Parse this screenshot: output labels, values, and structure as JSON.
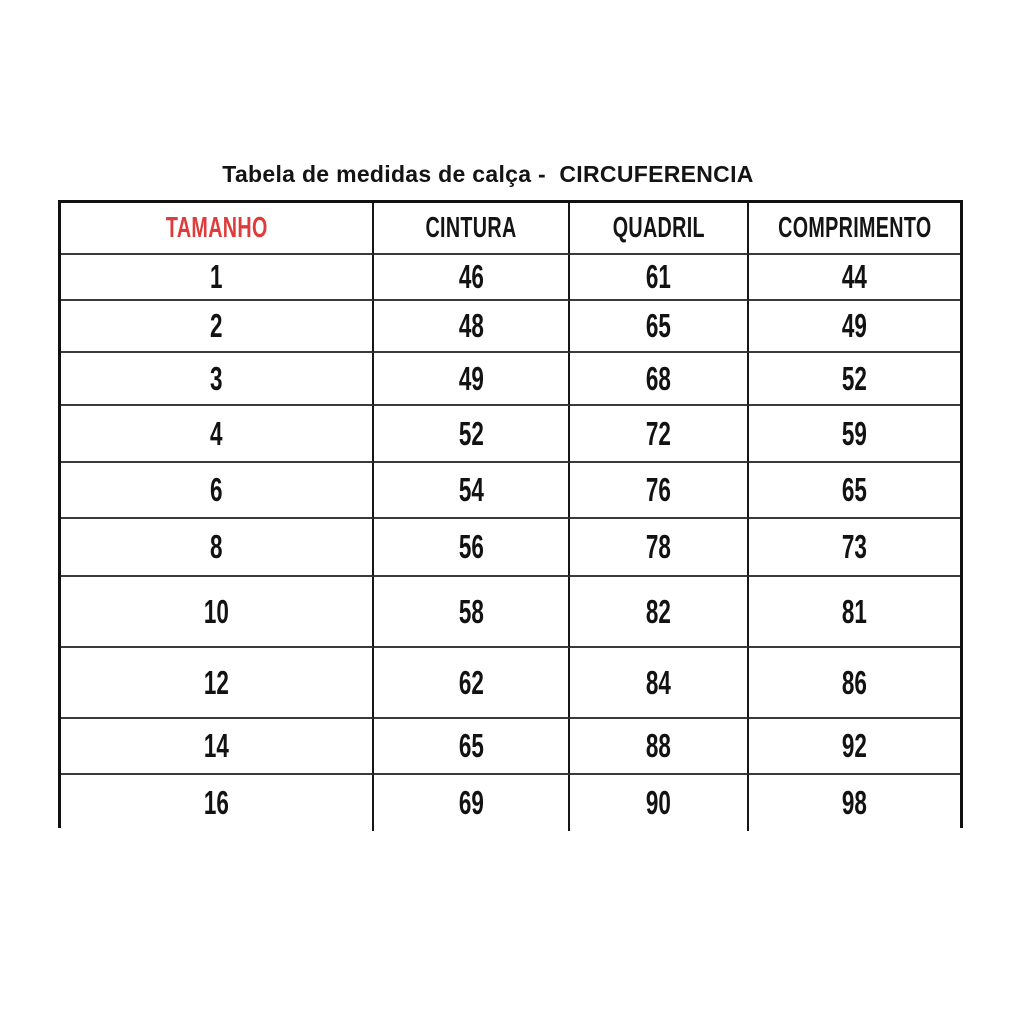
{
  "title": "Tabela de medidas de calça -  CIRCUFERENCIA",
  "colors": {
    "accent_red": "#e03a3a",
    "text_black": "#1b1b1b",
    "background": "#ffffff",
    "border": "#111111"
  },
  "table": {
    "headers": [
      "TAMANHO",
      "CINTURA",
      "QUADRIL",
      "COMPRIMENTO"
    ],
    "rows": [
      [
        "1",
        "46",
        "61",
        "44"
      ],
      [
        "2",
        "48",
        "65",
        "49"
      ],
      [
        "3",
        "49",
        "68",
        "52"
      ],
      [
        "4",
        "52",
        "72",
        "59"
      ],
      [
        "6",
        "54",
        "76",
        "65"
      ],
      [
        "8",
        "56",
        "78",
        "73"
      ],
      [
        "10",
        "58",
        "82",
        "81"
      ],
      [
        "12",
        "62",
        "84",
        "86"
      ],
      [
        "14",
        "65",
        "88",
        "92"
      ],
      [
        "16",
        "69",
        "90",
        "98"
      ]
    ]
  },
  "chart_data": {
    "type": "table",
    "title": "Tabela de medidas de calça -  CIRCUFERENCIA",
    "columns": [
      "TAMANHO",
      "CINTURA",
      "QUADRIL",
      "COMPRIMENTO"
    ],
    "rows": [
      [
        1,
        46,
        61,
        44
      ],
      [
        2,
        48,
        65,
        49
      ],
      [
        3,
        49,
        68,
        52
      ],
      [
        4,
        52,
        72,
        59
      ],
      [
        6,
        54,
        76,
        65
      ],
      [
        8,
        56,
        78,
        73
      ],
      [
        10,
        58,
        82,
        81
      ],
      [
        12,
        62,
        84,
        86
      ],
      [
        14,
        65,
        88,
        92
      ],
      [
        16,
        69,
        90,
        98
      ]
    ],
    "header_colors": {
      "TAMANHO": "#e03a3a",
      "CINTURA": "#141414",
      "QUADRIL": "#141414",
      "COMPRIMENTO": "#141414"
    },
    "layout": {
      "header_row": true,
      "grid": true,
      "units_implied": "cm"
    }
  }
}
